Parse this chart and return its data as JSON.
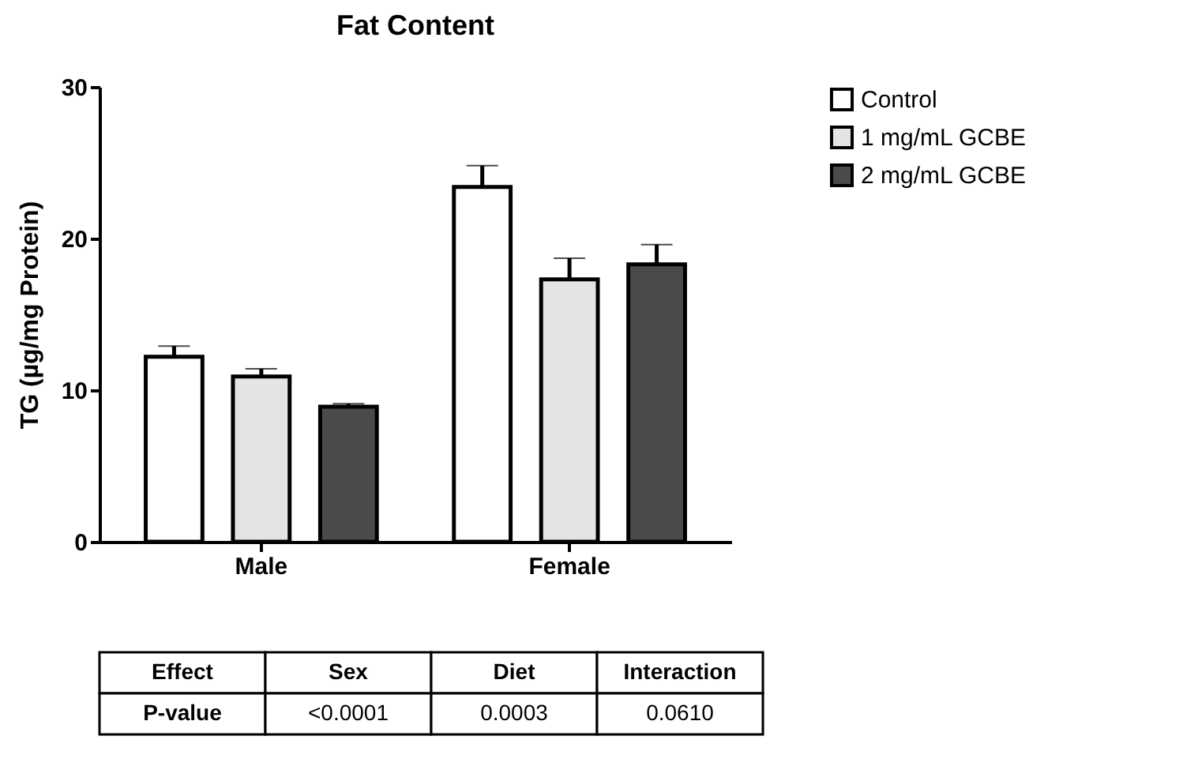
{
  "chart_data": {
    "type": "bar",
    "title": "Fat Content",
    "ylabel": "TG (µg/mg Protein)",
    "categories": [
      "Male",
      "Female"
    ],
    "series": [
      {
        "name": "Control",
        "color": "#ffffff",
        "values": [
          12.2,
          23.4
        ],
        "errors": [
          [
            12.2,
            12.9
          ],
          [
            23.4,
            24.8
          ]
        ]
      },
      {
        "name": "1 mg/mL GCBE",
        "color": "#e4e4e4",
        "values": [
          10.9,
          17.3
        ],
        "errors": [
          [
            10.9,
            11.4
          ],
          [
            17.3,
            18.7
          ]
        ]
      },
      {
        "name": "2 mg/mL GCBE",
        "color": "#4a4a4a",
        "values": [
          8.9,
          18.3
        ],
        "errors": [
          [
            8.9,
            9.1
          ],
          [
            18.3,
            19.6
          ]
        ]
      }
    ],
    "ylim": [
      0,
      30
    ],
    "yticks": [
      0,
      10,
      20,
      30
    ],
    "grid": false,
    "legend": "right",
    "annotations": [
      "Effect",
      "Sex",
      "Diet",
      "Interaction",
      "P-value",
      "<0.0001",
      "0.0003",
      "0.0610"
    ]
  }
}
